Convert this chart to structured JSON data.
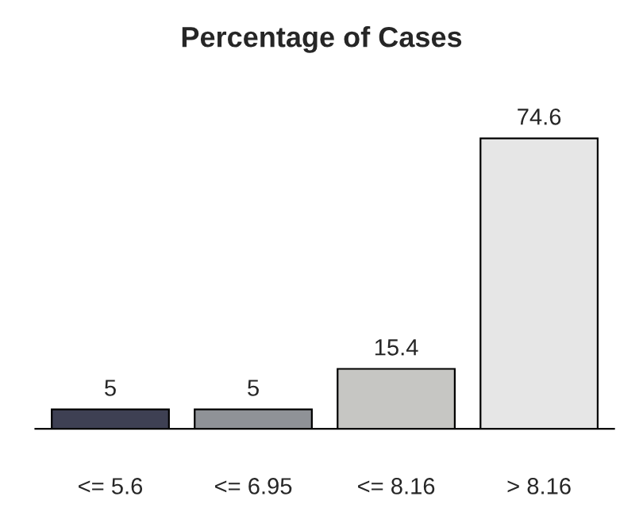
{
  "chart_data": {
    "type": "bar",
    "title": "Percentage of Cases",
    "categories": [
      "<= 5.6",
      "<= 6.95",
      "<= 8.16",
      "> 8.16"
    ],
    "values": [
      5,
      5,
      15.4,
      74.6
    ],
    "colors": [
      "#3e4053",
      "#8f9297",
      "#c6c6c3",
      "#e6e6e6"
    ],
    "data_labels": true,
    "grid": false,
    "legend": false
  }
}
